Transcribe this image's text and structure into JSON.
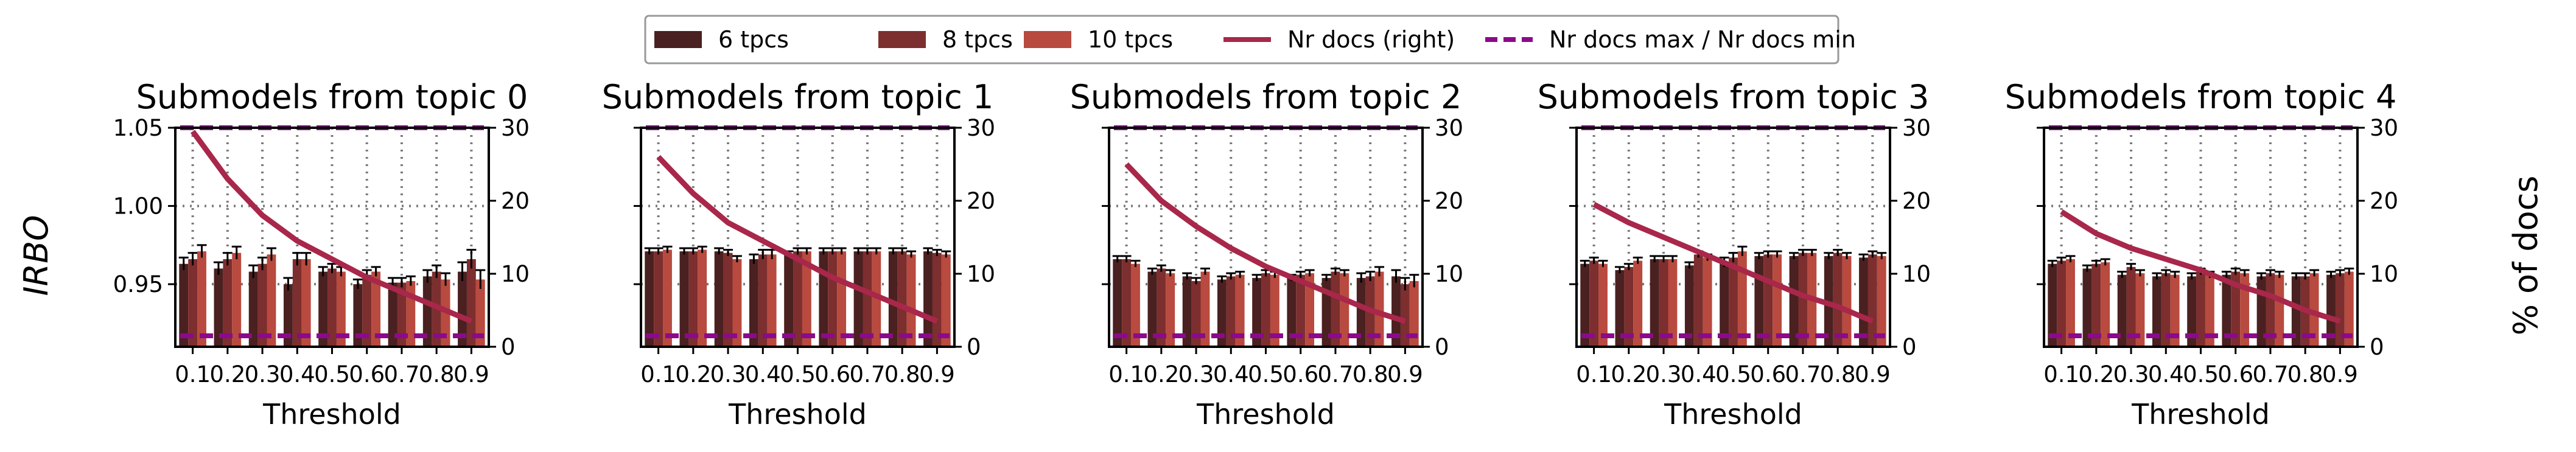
{
  "figure": {
    "left_ylabel": "IRBO",
    "right_ylabel": "% of docs",
    "legend": [
      {
        "label": "6 tpcs",
        "kind": "patch",
        "color": "#4a2020"
      },
      {
        "label": "8 tpcs",
        "kind": "patch",
        "color": "#7d2e2e"
      },
      {
        "label": "10 tpcs",
        "kind": "patch",
        "color": "#b84a3f"
      },
      {
        "label": "Nr docs (right)",
        "kind": "line",
        "color": "#a8274a"
      },
      {
        "label": "Nr docs max / Nr docs min",
        "kind": "dashed",
        "color": "#8b0a8b"
      }
    ]
  },
  "chart_data": [
    {
      "type": "bar",
      "title": "Submodels from topic 0",
      "xlabel": "Threshold",
      "ylabel": "IRBO",
      "y2label": "% of docs",
      "categories": [
        "0.1",
        "0.2",
        "0.3",
        "0.4",
        "0.5",
        "0.6",
        "0.7",
        "0.8",
        "0.9"
      ],
      "ylim": [
        0.91,
        1.05
      ],
      "y2lim": [
        0,
        30
      ],
      "yticks": [
        "0.95",
        "1.00",
        "1.05"
      ],
      "y2ticks": [
        "0",
        "10",
        "20",
        "30"
      ],
      "grid": true,
      "series": [
        {
          "name": "6 tpcs",
          "values": [
            0.963,
            0.96,
            0.958,
            0.95,
            0.958,
            0.95,
            0.951,
            0.955,
            0.958
          ]
        },
        {
          "name": "8 tpcs",
          "values": [
            0.966,
            0.966,
            0.963,
            0.966,
            0.96,
            0.956,
            0.951,
            0.958,
            0.966
          ]
        },
        {
          "name": "10 tpcs",
          "values": [
            0.971,
            0.97,
            0.969,
            0.966,
            0.958,
            0.958,
            0.952,
            0.953,
            0.953
          ]
        }
      ],
      "errors": [
        0.004,
        0.004,
        0.004,
        0.004,
        0.003,
        0.003,
        0.003,
        0.004,
        0.006
      ],
      "nr_docs": [
        29.5,
        23.0,
        18.0,
        14.5,
        12.0,
        9.5,
        7.5,
        5.5,
        3.5
      ],
      "nr_docs_max": 30,
      "nr_docs_min": 1.5
    },
    {
      "type": "bar",
      "title": "Submodels from topic 1",
      "xlabel": "Threshold",
      "ylabel": "IRBO",
      "y2label": "% of docs",
      "categories": [
        "0.1",
        "0.2",
        "0.3",
        "0.4",
        "0.5",
        "0.6",
        "0.7",
        "0.8",
        "0.9"
      ],
      "ylim": [
        0.91,
        1.05
      ],
      "y2lim": [
        0,
        30
      ],
      "yticks": [
        "0.95",
        "1.00",
        "1.05"
      ],
      "y2ticks": [
        "0",
        "10",
        "20",
        "30"
      ],
      "grid": true,
      "series": [
        {
          "name": "6 tpcs",
          "values": [
            0.971,
            0.971,
            0.971,
            0.966,
            0.969,
            0.971,
            0.971,
            0.971,
            0.971
          ]
        },
        {
          "name": "8 tpcs",
          "values": [
            0.971,
            0.971,
            0.97,
            0.969,
            0.971,
            0.971,
            0.971,
            0.971,
            0.97
          ]
        },
        {
          "name": "10 tpcs",
          "values": [
            0.972,
            0.972,
            0.966,
            0.969,
            0.971,
            0.971,
            0.971,
            0.969,
            0.969
          ]
        }
      ],
      "errors": [
        0.002,
        0.002,
        0.002,
        0.003,
        0.002,
        0.002,
        0.002,
        0.002,
        0.002
      ],
      "nr_docs": [
        26.0,
        21.0,
        17.0,
        14.5,
        12.0,
        9.5,
        7.5,
        5.5,
        3.5
      ],
      "nr_docs_max": 30,
      "nr_docs_min": 1.5
    },
    {
      "type": "bar",
      "title": "Submodels from topic 2",
      "xlabel": "Threshold",
      "ylabel": "IRBO",
      "y2label": "% of docs",
      "categories": [
        "0.1",
        "0.2",
        "0.3",
        "0.4",
        "0.5",
        "0.6",
        "0.7",
        "0.8",
        "0.9"
      ],
      "ylim": [
        0.91,
        1.05
      ],
      "y2lim": [
        0,
        30
      ],
      "yticks": [
        "0.95",
        "1.00",
        "1.05"
      ],
      "y2ticks": [
        "0",
        "10",
        "20",
        "30"
      ],
      "grid": true,
      "series": [
        {
          "name": "6 tpcs",
          "values": [
            0.966,
            0.958,
            0.955,
            0.953,
            0.954,
            0.954,
            0.954,
            0.954,
            0.955
          ]
        },
        {
          "name": "8 tpcs",
          "values": [
            0.966,
            0.96,
            0.952,
            0.955,
            0.957,
            0.956,
            0.958,
            0.955,
            0.95
          ]
        },
        {
          "name": "10 tpcs",
          "values": [
            0.963,
            0.957,
            0.958,
            0.956,
            0.956,
            0.957,
            0.957,
            0.958,
            0.952
          ]
        }
      ],
      "errors": [
        0.002,
        0.002,
        0.002,
        0.002,
        0.002,
        0.002,
        0.002,
        0.003,
        0.004
      ],
      "nr_docs": [
        25.0,
        20.0,
        16.5,
        13.5,
        11.0,
        9.0,
        7.0,
        5.0,
        3.5
      ],
      "nr_docs_max": 30,
      "nr_docs_min": 1.5
    },
    {
      "type": "bar",
      "title": "Submodels from topic 3",
      "xlabel": "Threshold",
      "ylabel": "IRBO",
      "y2label": "% of docs",
      "categories": [
        "0.1",
        "0.2",
        "0.3",
        "0.4",
        "0.5",
        "0.6",
        "0.7",
        "0.8",
        "0.9"
      ],
      "ylim": [
        0.91,
        1.05
      ],
      "y2lim": [
        0,
        30
      ],
      "yticks": [
        "0.95",
        "1.00",
        "1.05"
      ],
      "y2ticks": [
        "0",
        "10",
        "20",
        "30"
      ],
      "grid": true,
      "series": [
        {
          "name": "6 tpcs",
          "values": [
            0.963,
            0.959,
            0.966,
            0.962,
            0.964,
            0.968,
            0.968,
            0.968,
            0.967
          ]
        },
        {
          "name": "8 tpcs",
          "values": [
            0.965,
            0.961,
            0.966,
            0.969,
            0.967,
            0.969,
            0.97,
            0.97,
            0.969
          ]
        },
        {
          "name": "10 tpcs",
          "values": [
            0.963,
            0.965,
            0.966,
            0.967,
            0.971,
            0.969,
            0.97,
            0.968,
            0.968
          ]
        }
      ],
      "errors": [
        0.002,
        0.002,
        0.002,
        0.002,
        0.003,
        0.002,
        0.002,
        0.002,
        0.002
      ],
      "nr_docs": [
        19.5,
        17.0,
        15.0,
        13.0,
        11.0,
        9.0,
        7.0,
        5.5,
        3.5
      ],
      "nr_docs_max": 30,
      "nr_docs_min": 1.5
    },
    {
      "type": "bar",
      "title": "Submodels from topic 4",
      "xlabel": "Threshold",
      "ylabel": "IRBO",
      "y2label": "% of docs",
      "categories": [
        "0.1",
        "0.2",
        "0.3",
        "0.4",
        "0.5",
        "0.6",
        "0.7",
        "0.8",
        "0.9"
      ],
      "ylim": [
        0.91,
        1.05
      ],
      "y2lim": [
        0,
        30
      ],
      "yticks": [
        "0.95",
        "1.00",
        "1.05"
      ],
      "y2ticks": [
        "0",
        "10",
        "20",
        "30"
      ],
      "grid": true,
      "series": [
        {
          "name": "6 tpcs",
          "values": [
            0.963,
            0.96,
            0.956,
            0.955,
            0.955,
            0.956,
            0.955,
            0.955,
            0.956
          ]
        },
        {
          "name": "8 tpcs",
          "values": [
            0.965,
            0.963,
            0.961,
            0.957,
            0.958,
            0.958,
            0.957,
            0.955,
            0.957
          ]
        },
        {
          "name": "10 tpcs",
          "values": [
            0.966,
            0.964,
            0.957,
            0.956,
            0.956,
            0.957,
            0.956,
            0.957,
            0.958
          ]
        }
      ],
      "errors": [
        0.002,
        0.002,
        0.002,
        0.002,
        0.002,
        0.002,
        0.002,
        0.002,
        0.002
      ],
      "nr_docs": [
        18.5,
        15.5,
        13.5,
        12.0,
        10.5,
        8.5,
        7.0,
        5.0,
        3.5
      ],
      "nr_docs_max": 30,
      "nr_docs_min": 1.5
    }
  ]
}
